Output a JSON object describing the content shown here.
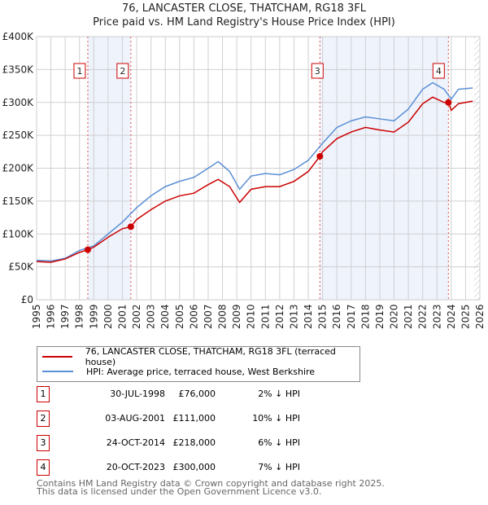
{
  "title": "76, LANCASTER CLOSE, THATCHAM, RG18 3FL",
  "subtitle": "Price paid vs. HM Land Registry's House Price Index (HPI)",
  "chart_data": {
    "type": "line",
    "title": "76, LANCASTER CLOSE, THATCHAM, RG18 3FL",
    "subtitle": "Price paid vs. HM Land Registry's House Price Index (HPI)",
    "xlim": [
      1995,
      2026
    ],
    "ylim": [
      0,
      400000
    ],
    "x_ticks": [
      "1995",
      "1996",
      "1997",
      "1998",
      "1999",
      "2000",
      "2001",
      "2002",
      "2003",
      "2004",
      "2005",
      "2006",
      "2007",
      "2008",
      "2009",
      "2010",
      "2011",
      "2012",
      "2013",
      "2014",
      "2015",
      "2016",
      "2017",
      "2018",
      "2019",
      "2020",
      "2021",
      "2022",
      "2023",
      "2024",
      "2025",
      "2026"
    ],
    "y_ticks": [
      {
        "v": 0,
        "label": "£0"
      },
      {
        "v": 50000,
        "label": "£50K"
      },
      {
        "v": 100000,
        "label": "£100K"
      },
      {
        "v": 150000,
        "label": "£150K"
      },
      {
        "v": 200000,
        "label": "£200K"
      },
      {
        "v": 250000,
        "label": "£250K"
      },
      {
        "v": 300000,
        "label": "£300K"
      },
      {
        "v": 350000,
        "label": "£350K"
      },
      {
        "v": 400000,
        "label": "£400K"
      }
    ],
    "grid": true,
    "shaded_ranges": [
      [
        1998.58,
        2001.59
      ],
      [
        2014.81,
        2023.8
      ]
    ],
    "hatched_from": 2025.6,
    "series": [
      {
        "name": "76, LANCASTER CLOSE, THATCHAM, RG18 3FL (terraced house)",
        "color": "#cc0000",
        "x": [
          1995,
          1996,
          1997,
          1998,
          1998.58,
          1999,
          2000,
          2001,
          2001.59,
          2002,
          2003,
          2004,
          2005,
          2006,
          2007,
          2007.7,
          2008.5,
          2009.2,
          2010,
          2011,
          2012,
          2013,
          2014,
          2014.81,
          2015,
          2016,
          2017,
          2018,
          2019,
          2020,
          2021,
          2022,
          2022.7,
          2023.5,
          2023.8,
          2024,
          2024.5,
          2025.5
        ],
        "y": [
          58000,
          57000,
          62000,
          72000,
          76000,
          80000,
          95000,
          108000,
          111000,
          122000,
          137000,
          150000,
          158000,
          162000,
          175000,
          183000,
          172000,
          148000,
          168000,
          172000,
          172000,
          180000,
          195000,
          218000,
          225000,
          245000,
          255000,
          262000,
          258000,
          255000,
          270000,
          298000,
          308000,
          300000,
          300000,
          288000,
          298000,
          302000
        ]
      },
      {
        "name": "HPI: Average price, terraced house, West Berkshire",
        "color": "#5b8fd6",
        "x": [
          1995,
          1996,
          1997,
          1998,
          1999,
          2000,
          2001,
          2002,
          2003,
          2004,
          2005,
          2006,
          2007,
          2007.7,
          2008.5,
          2009.2,
          2010,
          2011,
          2012,
          2013,
          2014,
          2015,
          2016,
          2017,
          2018,
          2019,
          2020,
          2021,
          2022,
          2022.7,
          2023.5,
          2024,
          2024.5,
          2025.5
        ],
        "y": [
          60000,
          59000,
          63000,
          75000,
          82000,
          100000,
          118000,
          140000,
          158000,
          172000,
          180000,
          186000,
          200000,
          210000,
          195000,
          168000,
          188000,
          192000,
          190000,
          198000,
          212000,
          238000,
          262000,
          272000,
          278000,
          275000,
          272000,
          290000,
          320000,
          330000,
          320000,
          305000,
          320000,
          322000
        ]
      }
    ],
    "sales": [
      {
        "label": "1",
        "x": 1998.58,
        "y": 76000,
        "date": "30-JUL-1998",
        "price": "£76,000",
        "hpi": "2% ↓ HPI"
      },
      {
        "label": "2",
        "x": 2001.59,
        "y": 111000,
        "date": "03-AUG-2001",
        "price": "£111,000",
        "hpi": "10% ↓ HPI"
      },
      {
        "label": "3",
        "x": 2014.81,
        "y": 218000,
        "date": "24-OCT-2014",
        "price": "£218,000",
        "hpi": "6% ↓ HPI"
      },
      {
        "label": "4",
        "x": 2023.8,
        "y": 300000,
        "date": "20-OCT-2023",
        "price": "£300,000",
        "hpi": "7% ↓ HPI"
      }
    ],
    "legend_position": "bottom"
  },
  "legend": {
    "red": "76, LANCASTER CLOSE, THATCHAM, RG18 3FL (terraced house)",
    "blue": "HPI: Average price, terraced house, West Berkshire"
  },
  "footer": {
    "line1": "Contains HM Land Registry data © Crown copyright and database right 2025.",
    "line2": "This data is licensed under the Open Government Licence v3.0."
  }
}
